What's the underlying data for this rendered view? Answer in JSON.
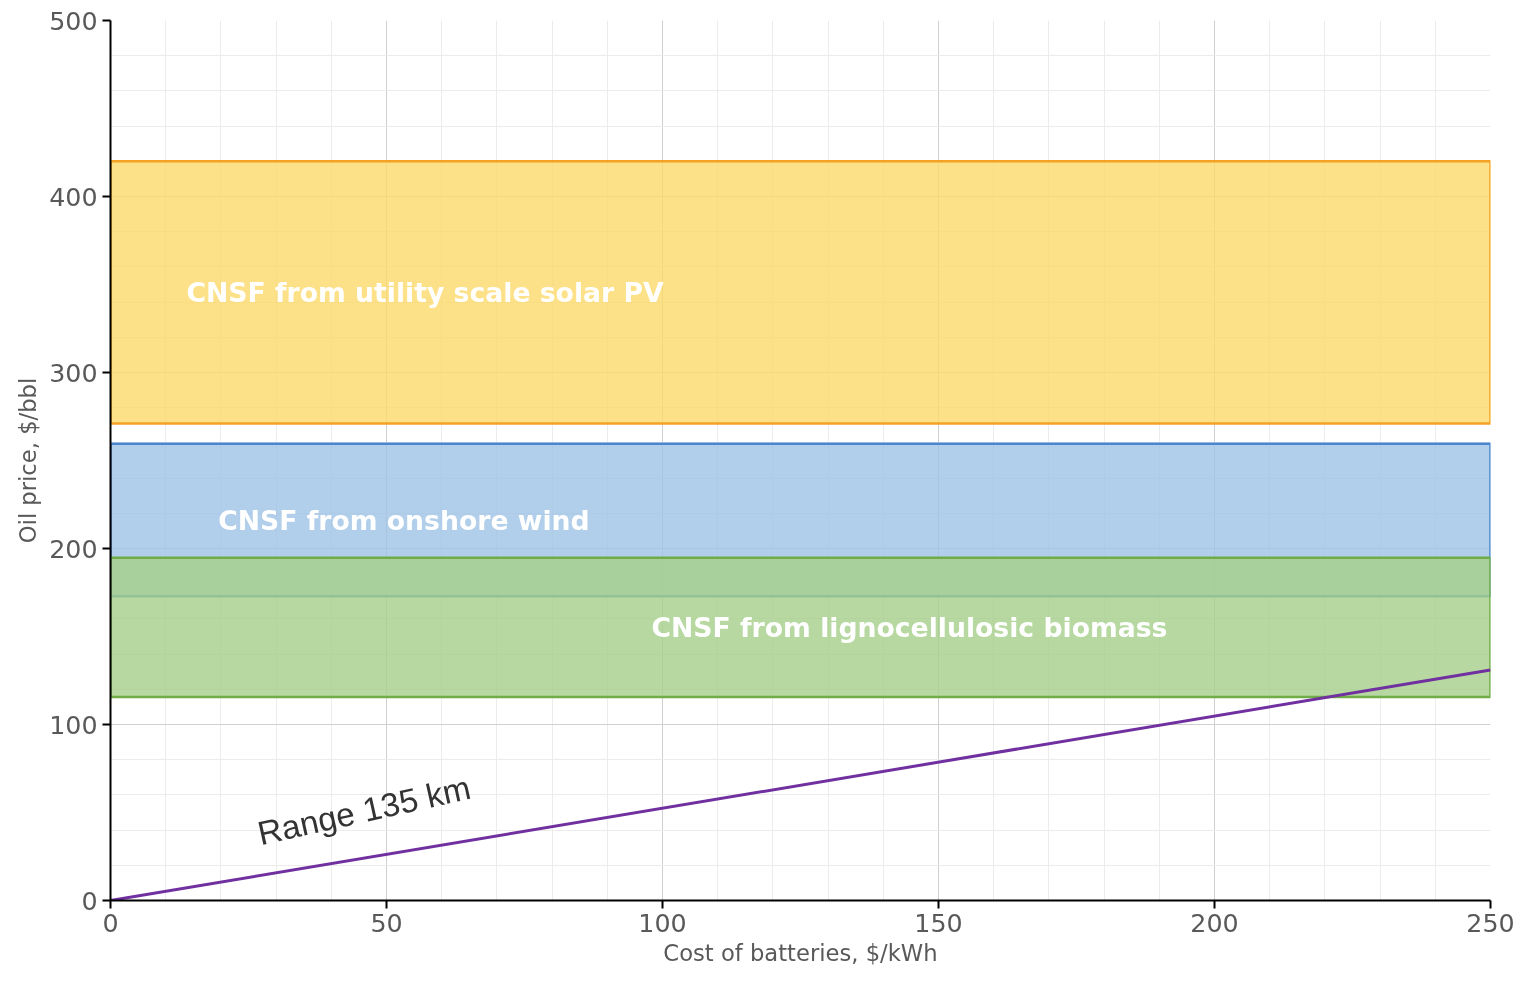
{
  "chart_data": {
    "type": "line",
    "xlabel": "Cost of batteries, $/kWh",
    "ylabel": "Oil price, $/bbl",
    "xlim": [
      0,
      250
    ],
    "xticks": [
      0,
      50,
      100,
      150,
      200,
      250
    ],
    "ylim": [
      0,
      500
    ],
    "yticks": [
      0,
      100,
      200,
      300,
      400,
      500
    ],
    "grid": true,
    "marker": "none",
    "line_style": "solid",
    "series": [
      {
        "color": "#7030a0",
        "x": [
          0,
          250
        ],
        "values": [
          0,
          131
        ]
      }
    ],
    "bands": [
      {
        "axis": "y",
        "from": 271,
        "to": 420,
        "label": "CNSF from utility scale solar PV",
        "color": "#f4a124"
      },
      {
        "axis": "y",
        "from": 172.8,
        "to": 259.5,
        "label": "CNSF from onshore wind",
        "color": "#4a86cf"
      },
      {
        "axis": "y",
        "from": 115.6,
        "to": 194.8,
        "label": "CNSF from lignocellulosic biomass",
        "color": "#70ad47"
      }
    ],
    "annotations": [
      "Range 135 km"
    ]
  }
}
